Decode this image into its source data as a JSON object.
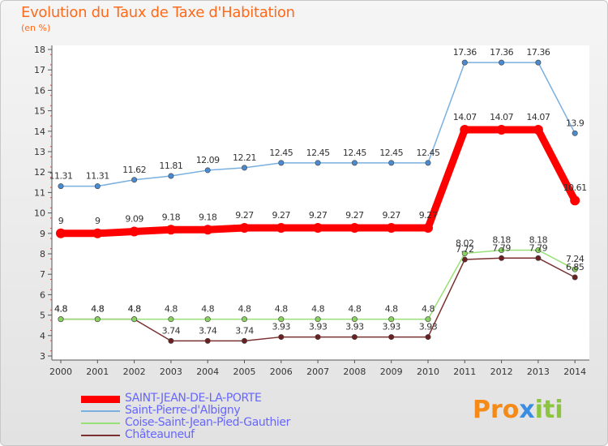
{
  "header": {
    "title": "Evolution du Taux de Taxe d'Habitation",
    "subtitle": "(en %)"
  },
  "brand": {
    "part1": "Pro",
    "part2": "x",
    "part3": "iti"
  },
  "chart_data": {
    "type": "line",
    "title": "Evolution du Taux de Taxe d'Habitation",
    "subtitle": "(en %)",
    "xlabel": "",
    "ylabel": "",
    "categories": [
      "2000",
      "2001",
      "2002",
      "2003",
      "2004",
      "2005",
      "2006",
      "2007",
      "2008",
      "2009",
      "2010",
      "2011",
      "2012",
      "2013",
      "2014"
    ],
    "ylim": [
      3,
      18
    ],
    "yticks": [
      "3",
      "4",
      "5",
      "6",
      "7",
      "8",
      "9",
      "10",
      "11",
      "12",
      "13",
      "14",
      "15",
      "16",
      "17",
      "18"
    ],
    "grid": false,
    "legend_position": "bottom-left",
    "series": [
      {
        "name": "Saint-Pierre-d'Albigny",
        "color": "#7ab0e0",
        "marker": "#4a8ad0",
        "values": [
          11.31,
          11.31,
          11.62,
          11.81,
          12.09,
          12.21,
          12.45,
          12.45,
          12.45,
          12.45,
          12.45,
          17.36,
          17.36,
          17.36,
          13.9
        ],
        "labels": [
          "11.31",
          "11.31",
          "11.62",
          "11.81",
          "12.09",
          "12.21",
          "12.45",
          "12.45",
          "12.45",
          "12.45",
          "12.45",
          "17.36",
          "17.36",
          "17.36",
          "13.9"
        ]
      },
      {
        "name": "SAINT-JEAN-DE-LA-PORTE",
        "color": "#ff0000",
        "marker": "#ff0000",
        "values": [
          9,
          9,
          9.09,
          9.18,
          9.18,
          9.27,
          9.27,
          9.27,
          9.27,
          9.27,
          9.27,
          14.07,
          14.07,
          14.07,
          10.61
        ],
        "labels": [
          "9",
          "9",
          "9.09",
          "9.18",
          "9.18",
          "9.27",
          "9.27",
          "9.27",
          "9.27",
          "9.27",
          "9.27",
          "14.07",
          "14.07",
          "14.07",
          "10.61"
        ]
      },
      {
        "name": "Coise-Saint-Jean-Pied-Gauthier",
        "color": "#99e077",
        "marker": "#88d060",
        "values": [
          4.8,
          4.8,
          4.8,
          4.8,
          4.8,
          4.8,
          4.8,
          4.8,
          4.8,
          4.8,
          4.8,
          8.02,
          8.18,
          8.18,
          7.24
        ],
        "labels": [
          "4.8",
          "4.8",
          "4.8",
          "4.8",
          "4.8",
          "4.8",
          "4.8",
          "4.8",
          "4.8",
          "4.8",
          "4.8",
          "8.02",
          "8.18",
          "8.18",
          "7.24"
        ]
      },
      {
        "name": "Châteauneuf",
        "color": "#7a3030",
        "marker": "#6a2020",
        "values": [
          4.8,
          4.8,
          4.8,
          3.74,
          3.74,
          3.74,
          3.93,
          3.93,
          3.93,
          3.93,
          3.93,
          7.72,
          7.79,
          7.79,
          6.85
        ],
        "labels": [
          "4.8",
          "4.8",
          "4.8",
          "3.74",
          "3.74",
          "3.74",
          "3.93",
          "3.93",
          "3.93",
          "3.93",
          "3.93",
          "7.72",
          "7.79",
          "7.79",
          "6.85"
        ]
      }
    ],
    "legend_order": [
      "SAINT-JEAN-DE-LA-PORTE",
      "Saint-Pierre-d'Albigny",
      "Coise-Saint-Jean-Pied-Gauthier",
      "Châteauneuf"
    ]
  }
}
